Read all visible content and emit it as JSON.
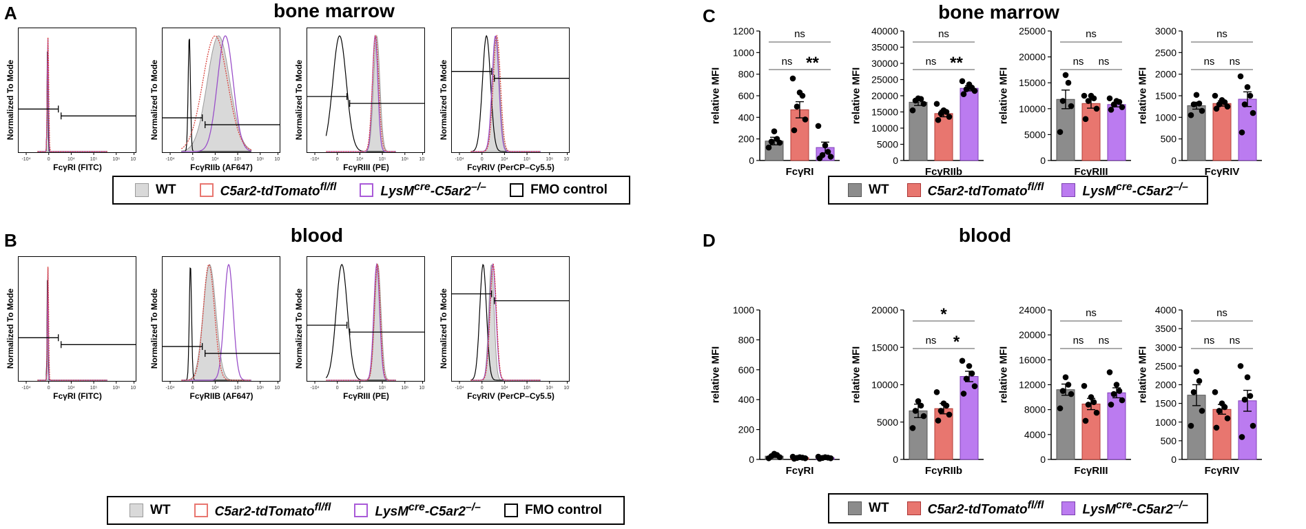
{
  "panels": {
    "a": "A",
    "b": "B",
    "c": "C",
    "d": "D"
  },
  "titles": {
    "top_left": "bone marrow",
    "bottom_left": "blood",
    "top_right": "bone marrow",
    "bottom_right": "blood"
  },
  "histograms": {
    "y_label": "Normalized To Mode",
    "x_ticks": [
      "-10⁴",
      "0",
      "10⁴",
      "10⁵",
      "10⁶",
      "10⁷"
    ],
    "bone_marrow": [
      {
        "label": "FcγRI (FITC)",
        "gate": [
          0.3,
          0.65
        ],
        "peaks": {
          "wt": [
            -0.05,
            0.02
          ],
          "fl": [
            -0.03,
            0.03
          ],
          "ko": [
            -0.04,
            0.025
          ],
          "fmo": [
            -0.05,
            0.02
          ]
        }
      },
      {
        "label": "FcγRIIb (AF647)",
        "gate": [
          0.3,
          0.72
        ],
        "peaks": {
          "wt": [
            1.15,
            0.5
          ],
          "fl": [
            1.0,
            0.55
          ],
          "ko": [
            1.45,
            0.35
          ],
          "fmo": [
            -0.15,
            0.05
          ]
        }
      },
      {
        "label": "FcγRIII (PE)",
        "gate": [
          0.45,
          0.55
        ],
        "peaks": {
          "wt": [
            1.75,
            0.14
          ],
          "fl": [
            1.7,
            0.14
          ],
          "ko": [
            1.68,
            0.12
          ],
          "fmo": [
            0.1,
            0.3
          ]
        }
      },
      {
        "label": "FcγRIV (PerCP–Cy5.5)",
        "gate": [
          0.42,
          0.35
        ],
        "peaks": {
          "wt": [
            0.62,
            0.16
          ],
          "fl": [
            0.66,
            0.16
          ],
          "ko": [
            0.6,
            0.15
          ],
          "fmo": [
            0.2,
            0.18
          ]
        }
      }
    ],
    "blood": [
      {
        "label": "FcγRI (FITC)",
        "gate": [
          0.3,
          0.65
        ],
        "peaks": {
          "wt": [
            -0.05,
            0.02
          ],
          "fl": [
            -0.03,
            0.025
          ],
          "ko": [
            -0.04,
            0.02
          ],
          "fmo": [
            -0.05,
            0.02
          ]
        }
      },
      {
        "label": "FcγRIIB (AF647)",
        "gate": [
          0.3,
          0.72
        ],
        "peaks": {
          "wt": [
            0.75,
            0.28
          ],
          "fl": [
            0.72,
            0.25
          ],
          "ko": [
            1.6,
            0.2
          ],
          "fmo": [
            -0.1,
            0.05
          ]
        }
      },
      {
        "label": "FcγRIII (PE)",
        "gate": [
          0.5,
          0.55
        ],
        "peaks": {
          "wt": [
            1.8,
            0.14
          ],
          "fl": [
            1.78,
            0.13
          ],
          "ko": [
            1.75,
            0.13
          ],
          "fmo": [
            0.2,
            0.25
          ]
        }
      },
      {
        "label": "FcγRIV (PerCP–Cy5.5)",
        "gate": [
          0.47,
          0.3
        ],
        "peaks": {
          "wt": [
            0.42,
            0.12
          ],
          "fl": [
            0.5,
            0.14
          ],
          "ko": [
            0.48,
            0.14
          ],
          "fmo": [
            0.05,
            0.15
          ]
        }
      }
    ]
  },
  "legend": {
    "wt": "WT",
    "fl_base": "C5ar2-tdTomato",
    "fl_sup": "fl/fl",
    "ko_pre": "LysM",
    "ko_sup": "cre",
    "ko_post": "-C5ar2",
    "ko_sup2": "–/–",
    "fmo": "FMO control"
  },
  "colors": {
    "wt": "#8c8c8c",
    "wt_hist": "#d9d9d9",
    "fl": "#e8766f",
    "fl_line": "#d9423c",
    "ko": "#bb7bf0",
    "ko_line": "#9a4fc9",
    "fmo": "#000000"
  },
  "chart_data": [
    {
      "type": "bar",
      "title": "bone marrow",
      "xlabel": "FcγRI",
      "ylabel": "relative MFI",
      "ylim": [
        0,
        1200
      ],
      "yticks": [
        0,
        200,
        400,
        600,
        800,
        1000,
        1200
      ],
      "categories": [
        "WT",
        "C5ar2-tdTomato fl/fl",
        "LysMcre-C5ar2–/–"
      ],
      "values": [
        180,
        470,
        120
      ],
      "errors": [
        35,
        75,
        50
      ],
      "points": [
        [
          120,
          165,
          175,
          200,
          270
        ],
        [
          280,
          380,
          500,
          600,
          630,
          760
        ],
        [
          20,
          35,
          50,
          80,
          140,
          320
        ]
      ],
      "sig": [
        {
          "text": "ns",
          "from": 0,
          "to": 2
        },
        {
          "text": "ns",
          "from": 0,
          "to": 1
        },
        {
          "text": "**",
          "from": 1,
          "to": 2
        }
      ]
    },
    {
      "type": "bar",
      "title": "bone marrow",
      "xlabel": "FcγRIIb",
      "ylabel": "relative MFI",
      "ylim": [
        0,
        40000
      ],
      "yticks": [
        0,
        5000,
        10000,
        15000,
        20000,
        25000,
        30000,
        35000,
        40000
      ],
      "categories": [
        "WT",
        "C5ar2-tdTomato fl/fl",
        "LysMcre-C5ar2–/–"
      ],
      "values": [
        18000,
        14500,
        22300
      ],
      "errors": [
        1000,
        1000,
        800
      ],
      "points": [
        [
          15500,
          17500,
          18500,
          19000,
          19200
        ],
        [
          12500,
          13500,
          14500,
          15000,
          15500,
          17500
        ],
        [
          20500,
          21500,
          22000,
          22500,
          23500,
          24500
        ]
      ],
      "sig": [
        {
          "text": "ns",
          "from": 0,
          "to": 2
        },
        {
          "text": "ns",
          "from": 0,
          "to": 1
        },
        {
          "text": "**",
          "from": 1,
          "to": 2
        }
      ]
    },
    {
      "type": "bar",
      "title": "bone marrow",
      "xlabel": "FcγRIII",
      "ylabel": "relative MFI",
      "ylim": [
        0,
        25000
      ],
      "yticks": [
        0,
        5000,
        10000,
        15000,
        20000,
        25000
      ],
      "categories": [
        "WT",
        "C5ar2-tdTomato fl/fl",
        "LysMcre-C5ar2–/–"
      ],
      "values": [
        11800,
        11000,
        10800
      ],
      "errors": [
        1800,
        900,
        450
      ],
      "points": [
        [
          5500,
          10500,
          11500,
          15000,
          16500
        ],
        [
          8000,
          10000,
          11500,
          12000,
          12500,
          12500
        ],
        [
          9800,
          10300,
          10800,
          11300,
          11500,
          12000
        ]
      ],
      "sig": [
        {
          "text": "ns",
          "from": 0,
          "to": 2
        },
        {
          "text": "ns",
          "from": 0,
          "to": 1
        },
        {
          "text": "ns",
          "from": 1,
          "to": 2
        }
      ]
    },
    {
      "type": "bar",
      "title": "bone marrow",
      "xlabel": "FcγRIV",
      "ylabel": "relative MFI",
      "ylim": [
        0,
        3000
      ],
      "yticks": [
        0,
        500,
        1000,
        1500,
        2000,
        2500,
        3000
      ],
      "categories": [
        "WT",
        "C5ar2-tdTomato fl/fl",
        "LysMcre-C5ar2–/–"
      ],
      "values": [
        1270,
        1320,
        1420
      ],
      "errors": [
        80,
        60,
        170
      ],
      "points": [
        [
          1050,
          1150,
          1300,
          1320,
          1520
        ],
        [
          1200,
          1250,
          1300,
          1350,
          1400,
          1500
        ],
        [
          650,
          1100,
          1300,
          1500,
          1700,
          1950
        ]
      ],
      "sig": [
        {
          "text": "ns",
          "from": 0,
          "to": 2
        },
        {
          "text": "ns",
          "from": 0,
          "to": 1
        },
        {
          "text": "ns",
          "from": 1,
          "to": 2
        }
      ]
    },
    {
      "type": "bar",
      "title": "blood",
      "xlabel": "FcγRI",
      "ylabel": "relative MFI",
      "ylim": [
        0,
        1000
      ],
      "yticks": [
        0,
        200,
        400,
        600,
        800,
        1000
      ],
      "categories": [
        "WT",
        "C5ar2-tdTomato fl/fl",
        "LysMcre-C5ar2–/–"
      ],
      "values": [
        22,
        12,
        12
      ],
      "errors": [
        8,
        4,
        4
      ],
      "points": [
        [
          8,
          15,
          22,
          30,
          38
        ],
        [
          5,
          8,
          10,
          12,
          15,
          18
        ],
        [
          5,
          8,
          10,
          12,
          15,
          18
        ]
      ],
      "sig": []
    },
    {
      "type": "bar",
      "title": "blood",
      "xlabel": "FcγRIIb",
      "ylabel": "relative MFI",
      "ylim": [
        0,
        20000
      ],
      "yticks": [
        0,
        5000,
        10000,
        15000,
        20000
      ],
      "categories": [
        "WT",
        "C5ar2-tdTomato fl/fl",
        "LysMcre-C5ar2–/–"
      ],
      "values": [
        6500,
        6800,
        11100
      ],
      "errors": [
        900,
        700,
        700
      ],
      "points": [
        [
          4200,
          5800,
          6500,
          7200,
          7800
        ],
        [
          5200,
          6000,
          6500,
          7200,
          7500,
          9000
        ],
        [
          8800,
          9800,
          10800,
          11500,
          12500,
          13200
        ]
      ],
      "sig": [
        {
          "text": "*",
          "from": 0,
          "to": 2
        },
        {
          "text": "ns",
          "from": 0,
          "to": 1
        },
        {
          "text": "*",
          "from": 1,
          "to": 2
        }
      ]
    },
    {
      "type": "bar",
      "title": "blood",
      "xlabel": "FcγRIII",
      "ylabel": "relative MFI",
      "ylim": [
        0,
        24000
      ],
      "yticks": [
        0,
        4000,
        8000,
        12000,
        16000,
        20000,
        24000
      ],
      "categories": [
        "WT",
        "C5ar2-tdTomato fl/fl",
        "LysMcre-C5ar2–/–"
      ],
      "values": [
        11200,
        8900,
        10700
      ],
      "errors": [
        900,
        900,
        800
      ],
      "points": [
        [
          8200,
          10500,
          11000,
          12000,
          13200
        ],
        [
          6200,
          7500,
          8800,
          9200,
          10000,
          11800
        ],
        [
          8800,
          9500,
          10500,
          11000,
          12000,
          14000
        ]
      ],
      "sig": [
        {
          "text": "ns",
          "from": 0,
          "to": 2
        },
        {
          "text": "ns",
          "from": 0,
          "to": 1
        },
        {
          "text": "ns",
          "from": 1,
          "to": 2
        }
      ]
    },
    {
      "type": "bar",
      "title": "blood",
      "xlabel": "FcγRIV",
      "ylabel": "relative MFI",
      "ylim": [
        0,
        4000
      ],
      "yticks": [
        0,
        500,
        1000,
        1500,
        2000,
        2500,
        3000,
        3500,
        4000
      ],
      "categories": [
        "WT",
        "C5ar2-tdTomato fl/fl",
        "LysMcre-C5ar2–/–"
      ],
      "values": [
        1720,
        1340,
        1570
      ],
      "errors": [
        280,
        130,
        280
      ],
      "points": [
        [
          900,
          1300,
          1800,
          2100,
          2350
        ],
        [
          850,
          1100,
          1300,
          1400,
          1500,
          1800
        ],
        [
          600,
          900,
          1600,
          1700,
          2200,
          2500
        ]
      ],
      "sig": [
        {
          "text": "ns",
          "from": 0,
          "to": 2
        },
        {
          "text": "ns",
          "from": 0,
          "to": 1
        },
        {
          "text": "ns",
          "from": 1,
          "to": 2
        }
      ]
    }
  ]
}
